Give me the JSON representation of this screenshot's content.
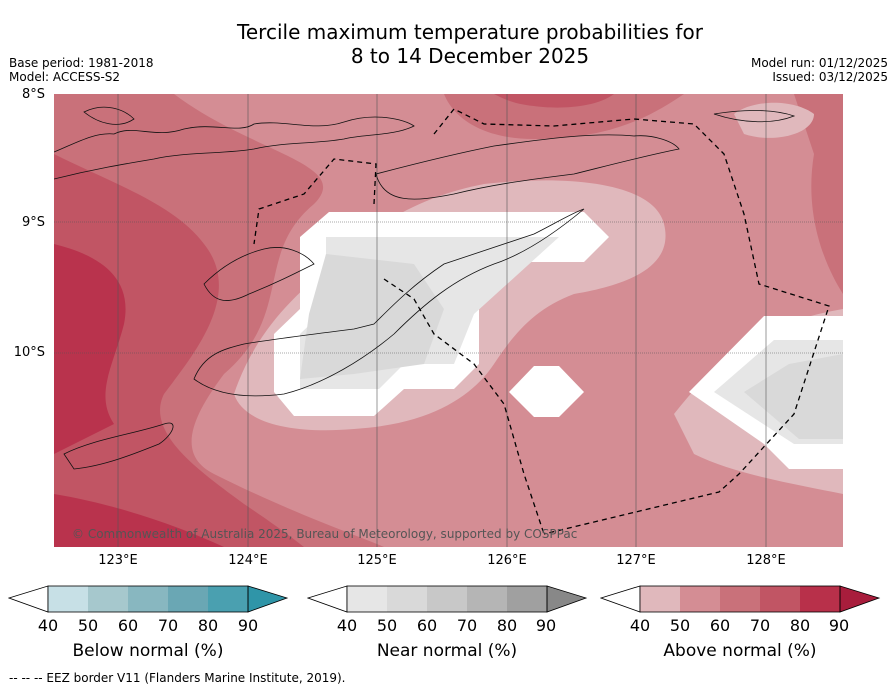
{
  "title": {
    "line1": "Tercile maximum temperature probabilities for",
    "line2": "8 to 14 December 2025"
  },
  "meta": {
    "base_period": "Base period: 1981-2018",
    "model": "Model: ACCESS-S2",
    "model_run": "Model run: 01/12/2025",
    "issued": "Issued: 03/12/2025"
  },
  "axes": {
    "lat_labels": [
      "8°S",
      "9°S",
      "10°S"
    ],
    "lon_labels": [
      "123°E",
      "124°E",
      "125°E",
      "126°E",
      "127°E",
      "128°E"
    ]
  },
  "copyright": "© Commonwealth of Australia 2025, Bureau of Meteorology, supported by COSPPac",
  "colorbars": [
    {
      "title": "Below normal (%)",
      "ticks": [
        "40",
        "50",
        "60",
        "70",
        "80",
        "90"
      ],
      "colors": [
        "#c7e0e6",
        "#a6c8cd",
        "#88b7c0",
        "#6aa7b4",
        "#4aa0b0",
        "#2f95a8"
      ]
    },
    {
      "title": "Near normal (%)",
      "ticks": [
        "40",
        "50",
        "60",
        "70",
        "80",
        "90"
      ],
      "colors": [
        "#e6e6e6",
        "#d9d9d9",
        "#c8c8c8",
        "#b5b5b5",
        "#a0a0a0",
        "#888888"
      ]
    },
    {
      "title": "Above normal (%)",
      "ticks": [
        "40",
        "50",
        "60",
        "70",
        "80",
        "90"
      ],
      "colors": [
        "#e0b8bc",
        "#d48d94",
        "#c9717a",
        "#c15564",
        "#b8304a",
        "#a81d3c"
      ]
    }
  ],
  "footer": "--  --  -- EEZ border V11 (Flanders Marine Institute, 2019)."
}
